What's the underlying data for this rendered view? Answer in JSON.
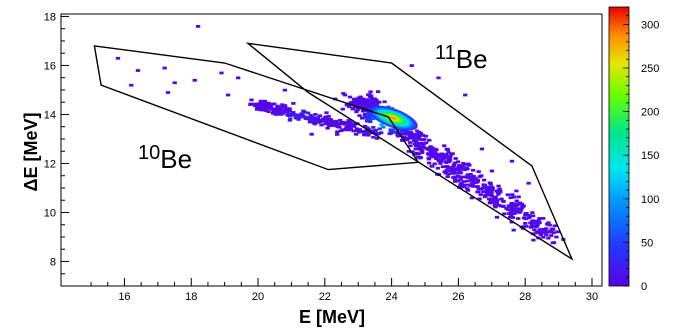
{
  "chart_data": {
    "type": "heatmap",
    "xlabel": "E [MeV]",
    "ylabel": "ΔE [MeV]",
    "xlim": [
      14.1,
      30.3
    ],
    "ylim": [
      7.0,
      18.1
    ],
    "x_ticks": [
      "16",
      "18",
      "20",
      "22",
      "24",
      "26",
      "28",
      "30"
    ],
    "y_ticks": [
      "8",
      "10",
      "12",
      "14",
      "16",
      "18"
    ],
    "colorbar": {
      "min": 0,
      "max": 320,
      "ticks": [
        "0",
        "50",
        "100",
        "150",
        "200",
        "250",
        "300"
      ]
    },
    "gates": [
      {
        "label_mass": "10",
        "label_symbol": "Be",
        "polygon": [
          [
            15.1,
            16.8
          ],
          [
            19.0,
            16.1
          ],
          [
            23.9,
            13.9
          ],
          [
            24.8,
            12.05
          ],
          [
            22.1,
            11.75
          ],
          [
            15.3,
            15.2
          ]
        ]
      },
      {
        "label_mass": "11",
        "label_symbol": "Be",
        "polygon": [
          [
            19.7,
            16.9
          ],
          [
            24.0,
            16.1
          ],
          [
            28.2,
            11.9
          ],
          [
            29.4,
            8.1
          ],
          [
            21.5,
            14.9
          ]
        ]
      }
    ],
    "clusters": [
      {
        "name": "10Be band",
        "x_start": 20.0,
        "x_end": 23.6,
        "y_start": 14.4,
        "y_end": 13.2,
        "peak_x": 21.3,
        "peak_y": 13.9,
        "peak_count": 18,
        "points": 260,
        "spread": 0.22
      },
      {
        "name": "11Be band",
        "x_start": 23.1,
        "x_end": 28.8,
        "y_start": 14.5,
        "y_end": 9.0,
        "peak_x": 24.0,
        "peak_y": 13.85,
        "peak_count": 320,
        "points": 700,
        "spread": 0.35
      }
    ],
    "sparse_points": [
      [
        18.2,
        17.6
      ],
      [
        15.8,
        16.3
      ],
      [
        16.4,
        15.8
      ],
      [
        17.2,
        15.9
      ],
      [
        17.5,
        15.3
      ],
      [
        18.9,
        15.7
      ],
      [
        19.4,
        15.5
      ],
      [
        18.1,
        15.4
      ],
      [
        16.2,
        15.2
      ],
      [
        17.3,
        14.9
      ],
      [
        19.8,
        14.6
      ],
      [
        20.8,
        15.0
      ],
      [
        19.1,
        14.8
      ],
      [
        22.6,
        14.8
      ],
      [
        26.7,
        12.6
      ],
      [
        27.0,
        11.7
      ],
      [
        27.6,
        12.1
      ],
      [
        28.1,
        11.2
      ],
      [
        26.4,
        10.6
      ],
      [
        27.2,
        10.3
      ],
      [
        28.0,
        9.9
      ],
      [
        21.6,
        13.2
      ],
      [
        24.6,
        16.0
      ],
      [
        25.4,
        15.5
      ],
      [
        26.2,
        14.8
      ]
    ]
  }
}
